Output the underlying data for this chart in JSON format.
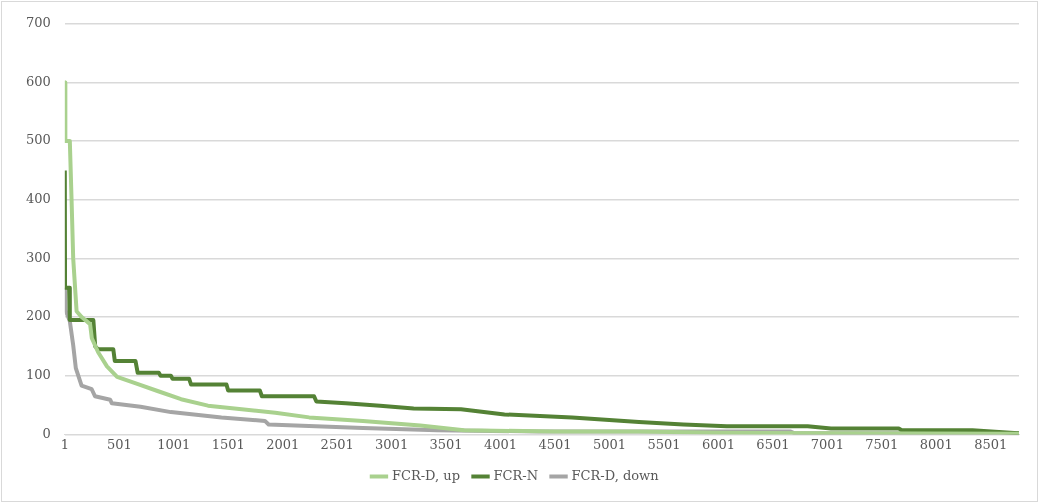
{
  "chart_data": {
    "type": "line",
    "xlim": [
      1,
      8760
    ],
    "xticks": [
      1,
      501,
      1001,
      1501,
      2001,
      2501,
      3001,
      3501,
      4001,
      4501,
      5001,
      5501,
      6001,
      6501,
      7001,
      7501,
      8001,
      8501
    ],
    "ylim": [
      0,
      700
    ],
    "yticks": [
      0,
      100,
      200,
      300,
      400,
      500,
      600,
      700
    ],
    "grid": "y",
    "legend": "bottom",
    "marker": "none",
    "line_style": "solid",
    "series": [
      {
        "name": "FCR-D, up",
        "color": "#a9d18e",
        "x": [
          1,
          5,
          6,
          47,
          63,
          78,
          109,
          156,
          233,
          249,
          307,
          388,
          481,
          666,
          852,
          1068,
          1315,
          1625,
          1933,
          2244,
          2738,
          3264,
          3666,
          4500,
          5271,
          6000,
          7000,
          8760
        ],
        "values": [
          600,
          600,
          500,
          500,
          400,
          300,
          210,
          200,
          188,
          164,
          140,
          116,
          98,
          86,
          74,
          60,
          49,
          43,
          37,
          29,
          23,
          15,
          7,
          5,
          5,
          3,
          2,
          1
        ]
      },
      {
        "name": "FCR-N",
        "color": "#548235",
        "x": [
          1,
          3,
          40,
          47,
          263,
          280,
          307,
          446,
          460,
          650,
          670,
          864,
          880,
          975,
          990,
          1142,
          1160,
          1485,
          1500,
          1791,
          1810,
          2289,
          2310,
          2580,
          2895,
          3203,
          3638,
          4037,
          4658,
          5271,
          5679,
          6078,
          6820,
          7034,
          7656,
          7684,
          8333,
          8760
        ],
        "values": [
          450,
          250,
          250,
          195,
          195,
          150,
          145,
          145,
          125,
          125,
          105,
          105,
          100,
          100,
          95,
          95,
          85,
          85,
          75,
          75,
          65,
          65,
          56,
          53,
          49,
          44,
          43,
          34,
          29,
          21,
          17,
          14,
          14,
          10,
          10,
          7,
          7,
          2
        ]
      },
      {
        "name": "FCR-D, down",
        "color": "#a5a5a5",
        "x": [
          1,
          10,
          47,
          78,
          102,
          155,
          248,
          278,
          418,
          433,
          696,
          975,
          1439,
          1838,
          1872,
          2738,
          3417,
          4345,
          6664,
          6700,
          8760
        ],
        "values": [
          250,
          211,
          193,
          152,
          113,
          83,
          77,
          65,
          59,
          53,
          47,
          38,
          29,
          23,
          17,
          11,
          7,
          5,
          5,
          2,
          2
        ]
      }
    ]
  }
}
